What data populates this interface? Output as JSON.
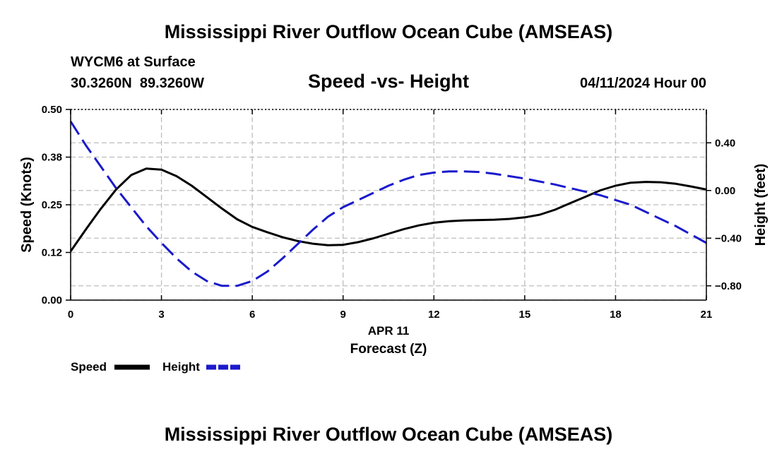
{
  "page": {
    "title": "Mississippi River Outflow Ocean Cube (AMSEAS)",
    "station": "WYCM6 at Surface",
    "coords": "30.3260N  89.3260W",
    "chart_title": "Speed -vs- Height",
    "date_label": "04/11/2024 Hour 00",
    "footer_title": "Mississippi River Outflow Ocean Cube (AMSEAS)"
  },
  "chart_data": {
    "type": "line",
    "title": "Speed -vs- Height",
    "xlabel": "Forecast (Z)",
    "date_tick": "APR 11",
    "ylabel_left": "Speed (Knots)",
    "ylabel_right": "Height (feet)",
    "xlim": [
      0,
      21
    ],
    "ylim_left": [
      0,
      0.5
    ],
    "ylim_right": [
      -0.92,
      0.68
    ],
    "x_ticks": [
      0,
      3,
      6,
      9,
      12,
      15,
      18,
      21
    ],
    "x_tick_labels": [
      "0",
      "3",
      "6",
      "9",
      "12",
      "15",
      "18",
      "21"
    ],
    "y_left_ticks": [
      0,
      0.125,
      0.25,
      0.375,
      0.5
    ],
    "y_left_tick_labels": [
      "0.00",
      "0.12",
      "0.25",
      "0.38",
      "0.50"
    ],
    "y_right_ticks": [
      -0.8,
      -0.4,
      0,
      0.4
    ],
    "y_right_tick_labels": [
      "−0.80",
      "−0.40",
      "0.00",
      "0.40"
    ],
    "grid": true,
    "legend_position": "bottom-left",
    "series": [
      {
        "name": "Speed",
        "axis": "left",
        "color": "#000000",
        "dash": "solid",
        "x": [
          0,
          0.5,
          1,
          1.5,
          2,
          2.5,
          3,
          3.5,
          4,
          4.5,
          5,
          5.5,
          6,
          6.5,
          7,
          7.5,
          8,
          8.5,
          9,
          9.5,
          10,
          10.5,
          11,
          11.5,
          12,
          12.5,
          13,
          13.5,
          14,
          14.5,
          15,
          15.5,
          16,
          16.5,
          17,
          17.5,
          18,
          18.5,
          19,
          19.5,
          20,
          20.5,
          21
        ],
        "values": [
          0.128,
          0.185,
          0.24,
          0.29,
          0.328,
          0.345,
          0.342,
          0.325,
          0.3,
          0.27,
          0.24,
          0.212,
          0.192,
          0.178,
          0.165,
          0.155,
          0.148,
          0.144,
          0.145,
          0.152,
          0.162,
          0.174,
          0.186,
          0.196,
          0.203,
          0.207,
          0.209,
          0.21,
          0.211,
          0.213,
          0.217,
          0.224,
          0.237,
          0.254,
          0.271,
          0.288,
          0.3,
          0.308,
          0.31,
          0.309,
          0.305,
          0.298,
          0.29
        ]
      },
      {
        "name": "Height",
        "axis": "right",
        "color": "#1a1acc",
        "dash": "dashed",
        "x": [
          0,
          0.5,
          1,
          1.5,
          2,
          2.5,
          3,
          3.5,
          4,
          4.5,
          5,
          5.5,
          6,
          6.5,
          7,
          7.5,
          8,
          8.5,
          9,
          9.5,
          10,
          10.5,
          11,
          11.5,
          12,
          12.5,
          13,
          13.5,
          14,
          14.5,
          15,
          15.5,
          16,
          16.5,
          17,
          17.5,
          18,
          18.5,
          19,
          19.5,
          20,
          20.5,
          21
        ],
        "values": [
          0.58,
          0.38,
          0.2,
          0.02,
          -0.14,
          -0.3,
          -0.44,
          -0.57,
          -0.68,
          -0.76,
          -0.8,
          -0.8,
          -0.76,
          -0.68,
          -0.57,
          -0.45,
          -0.33,
          -0.22,
          -0.14,
          -0.08,
          -0.02,
          0.04,
          0.09,
          0.13,
          0.15,
          0.16,
          0.16,
          0.155,
          0.14,
          0.12,
          0.1,
          0.075,
          0.05,
          0.02,
          -0.01,
          -0.04,
          -0.08,
          -0.12,
          -0.18,
          -0.24,
          -0.3,
          -0.37,
          -0.44
        ]
      }
    ]
  }
}
